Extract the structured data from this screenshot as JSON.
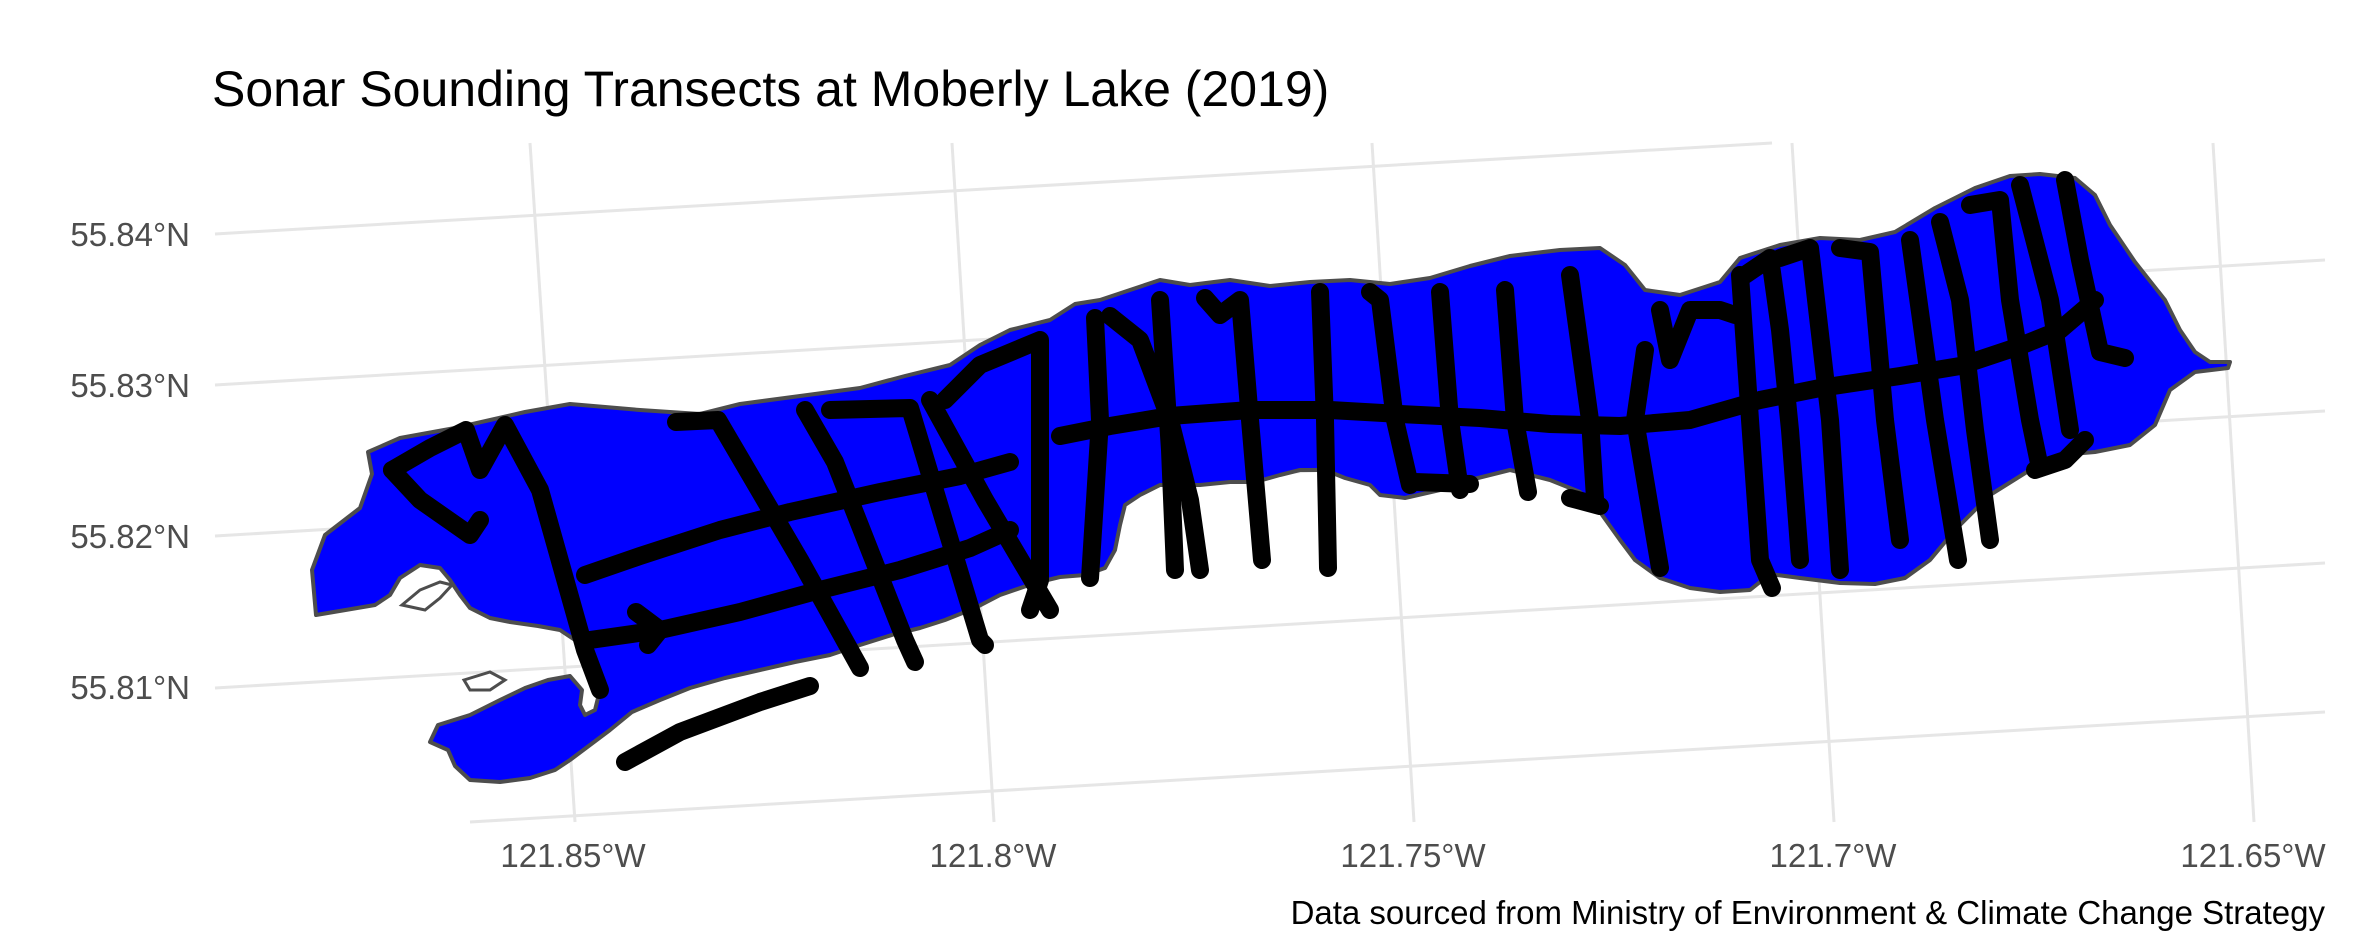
{
  "title": "Sonar Sounding Transects at Moberly Lake (2019)",
  "caption": "Data sourced from Ministry of Environment & Climate Change Strategy",
  "colors": {
    "lake_fill": "#0000ff",
    "lake_outline": "#4d4d4d",
    "transect": "#000000",
    "grid": "#e6e6e6",
    "tick_text": "#4d4d4d"
  },
  "axes": {
    "x_ticks": [
      "121.85°W",
      "121.8°W",
      "121.75°W",
      "121.7°W",
      "121.65°W"
    ],
    "y_ticks": [
      "55.84°N",
      "55.83°N",
      "55.82°N",
      "55.81°N"
    ],
    "grid": true
  }
}
